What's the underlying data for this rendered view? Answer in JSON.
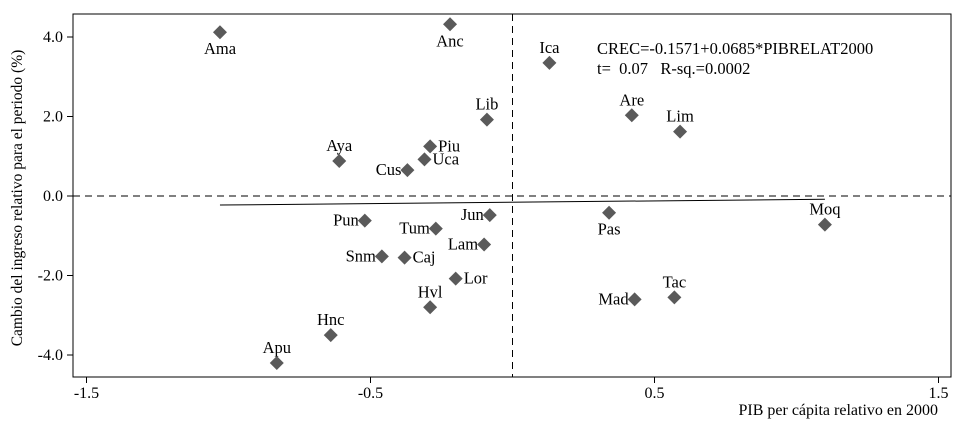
{
  "chart_data": {
    "type": "scatter",
    "title": "",
    "xlabel": "PIB per cápita relativo en 2000",
    "ylabel": "Cambio del ingreso relativo para el periodo (%)",
    "xlim": [
      -1.5,
      1.5
    ],
    "ylim": [
      -4.5,
      4.6
    ],
    "xticks": [
      -1.5,
      -0.5,
      0.5,
      1.5
    ],
    "xtick_labels": [
      "-1.5",
      "-0.5",
      "0.5",
      "1.5"
    ],
    "yticks": [
      -4.0,
      -2.0,
      0.0,
      2.0,
      4.0
    ],
    "ytick_labels": [
      "-4.0",
      "-2.0",
      "0.0",
      "2.0",
      "4.0"
    ],
    "reference_lines": {
      "x": 0.0,
      "y": 0.0,
      "style": "dashed"
    },
    "regression": {
      "intercept": -0.1571,
      "slope": 0.0685,
      "x_range": [
        -1.03,
        1.1
      ],
      "annotation_line1": "CREC=-0.1571+0.0685*PIBRELAT2000",
      "annotation_line2": "t=  0.07   R-sq.=0.0002"
    },
    "marker_color": "#5a5a5a",
    "points": [
      {
        "label": "Ama",
        "x": -1.03,
        "y": 4.12,
        "label_pos": "below"
      },
      {
        "label": "Anc",
        "x": -0.22,
        "y": 4.32,
        "label_pos": "below"
      },
      {
        "label": "Ica",
        "x": 0.13,
        "y": 3.35,
        "label_pos": "above"
      },
      {
        "label": "Lib",
        "x": -0.09,
        "y": 1.92,
        "label_pos": "above"
      },
      {
        "label": "Are",
        "x": 0.42,
        "y": 2.03,
        "label_pos": "above"
      },
      {
        "label": "Lim",
        "x": 0.59,
        "y": 1.62,
        "label_pos": "above"
      },
      {
        "label": "Aya",
        "x": -0.61,
        "y": 0.88,
        "label_pos": "above"
      },
      {
        "label": "Piu",
        "x": -0.29,
        "y": 1.25,
        "label_pos": "right"
      },
      {
        "label": "Uca",
        "x": -0.31,
        "y": 0.92,
        "label_pos": "right"
      },
      {
        "label": "Cus",
        "x": -0.37,
        "y": 0.65,
        "label_pos": "left"
      },
      {
        "label": "Pun",
        "x": -0.52,
        "y": -0.62,
        "label_pos": "left"
      },
      {
        "label": "Tum",
        "x": -0.27,
        "y": -0.82,
        "label_pos": "left"
      },
      {
        "label": "Jun",
        "x": -0.08,
        "y": -0.48,
        "label_pos": "left"
      },
      {
        "label": "Lam",
        "x": -0.1,
        "y": -1.22,
        "label_pos": "left"
      },
      {
        "label": "Snm",
        "x": -0.46,
        "y": -1.52,
        "label_pos": "left"
      },
      {
        "label": "Caj",
        "x": -0.38,
        "y": -1.55,
        "label_pos": "right"
      },
      {
        "label": "Lor",
        "x": -0.2,
        "y": -2.08,
        "label_pos": "right"
      },
      {
        "label": "Hvl",
        "x": -0.29,
        "y": -2.8,
        "label_pos": "above"
      },
      {
        "label": "Hnc",
        "x": -0.64,
        "y": -3.5,
        "label_pos": "above"
      },
      {
        "label": "Apu",
        "x": -0.83,
        "y": -4.2,
        "label_pos": "above"
      },
      {
        "label": "Pas",
        "x": 0.34,
        "y": -0.42,
        "label_pos": "below"
      },
      {
        "label": "Moq",
        "x": 1.1,
        "y": -0.72,
        "label_pos": "above"
      },
      {
        "label": "Mad",
        "x": 0.43,
        "y": -2.6,
        "label_pos": "left"
      },
      {
        "label": "Tac",
        "x": 0.57,
        "y": -2.55,
        "label_pos": "above"
      }
    ]
  }
}
